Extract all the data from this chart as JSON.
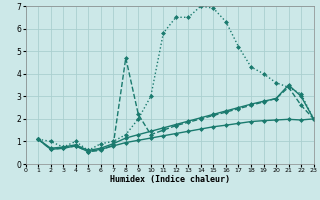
{
  "xlabel": "Humidex (Indice chaleur)",
  "bg_color": "#cce8e8",
  "grid_color": "#aacfcf",
  "line_color": "#1a7a6e",
  "xlim": [
    0,
    23
  ],
  "ylim": [
    0,
    7
  ],
  "xticks": [
    0,
    1,
    2,
    3,
    4,
    5,
    6,
    7,
    8,
    9,
    10,
    11,
    12,
    13,
    14,
    15,
    16,
    17,
    18,
    19,
    20,
    21,
    22,
    23
  ],
  "yticks": [
    0,
    1,
    2,
    3,
    4,
    5,
    6,
    7
  ],
  "lines": [
    {
      "x": [
        1,
        2,
        3,
        4,
        5,
        6,
        7,
        8,
        9,
        10,
        11,
        12,
        13,
        14,
        15,
        16,
        17,
        18,
        19,
        20,
        21,
        22,
        23
      ],
      "y": [
        1.1,
        1.0,
        0.75,
        1.0,
        0.6,
        0.9,
        1.0,
        1.3,
        2.0,
        3.0,
        5.8,
        6.5,
        6.5,
        7.0,
        6.9,
        6.3,
        5.2,
        4.3,
        4.0,
        3.6,
        3.4,
        3.1,
        2.0
      ],
      "linestyle": ":",
      "linewidth": 1.0,
      "marker": "D",
      "markersize": 2.0
    },
    {
      "x": [
        1,
        2,
        3,
        4,
        5,
        6,
        7,
        8,
        9,
        10,
        11,
        12,
        13,
        14,
        15,
        16,
        17,
        18,
        19,
        20,
        21,
        22,
        23
      ],
      "y": [
        1.1,
        0.65,
        0.7,
        0.8,
        0.55,
        0.6,
        0.85,
        4.7,
        2.2,
        1.3,
        1.5,
        1.7,
        1.85,
        2.0,
        2.15,
        2.3,
        2.45,
        2.6,
        2.75,
        2.9,
        3.4,
        2.6,
        2.0
      ],
      "linestyle": "--",
      "linewidth": 1.0,
      "marker": "D",
      "markersize": 2.0
    },
    {
      "x": [
        1,
        2,
        3,
        4,
        5,
        6,
        7,
        8,
        9,
        10,
        11,
        12,
        13,
        14,
        15,
        16,
        17,
        18,
        19,
        20,
        21,
        22,
        23
      ],
      "y": [
        1.1,
        0.7,
        0.75,
        0.85,
        0.6,
        0.7,
        0.9,
        1.15,
        1.3,
        1.45,
        1.6,
        1.75,
        1.9,
        2.05,
        2.2,
        2.35,
        2.5,
        2.65,
        2.78,
        2.9,
        3.5,
        3.0,
        2.0
      ],
      "linestyle": "-",
      "linewidth": 1.0,
      "marker": "D",
      "markersize": 2.0
    },
    {
      "x": [
        1,
        2,
        3,
        4,
        5,
        6,
        7,
        8,
        9,
        10,
        11,
        12,
        13,
        14,
        15,
        16,
        17,
        18,
        19,
        20,
        21,
        22,
        23
      ],
      "y": [
        1.1,
        0.65,
        0.7,
        0.8,
        0.55,
        0.65,
        0.8,
        0.95,
        1.05,
        1.15,
        1.25,
        1.35,
        1.45,
        1.55,
        1.65,
        1.72,
        1.8,
        1.88,
        1.92,
        1.95,
        1.98,
        1.95,
        2.0
      ],
      "linestyle": "-",
      "linewidth": 1.0,
      "marker": "D",
      "markersize": 2.0
    }
  ]
}
